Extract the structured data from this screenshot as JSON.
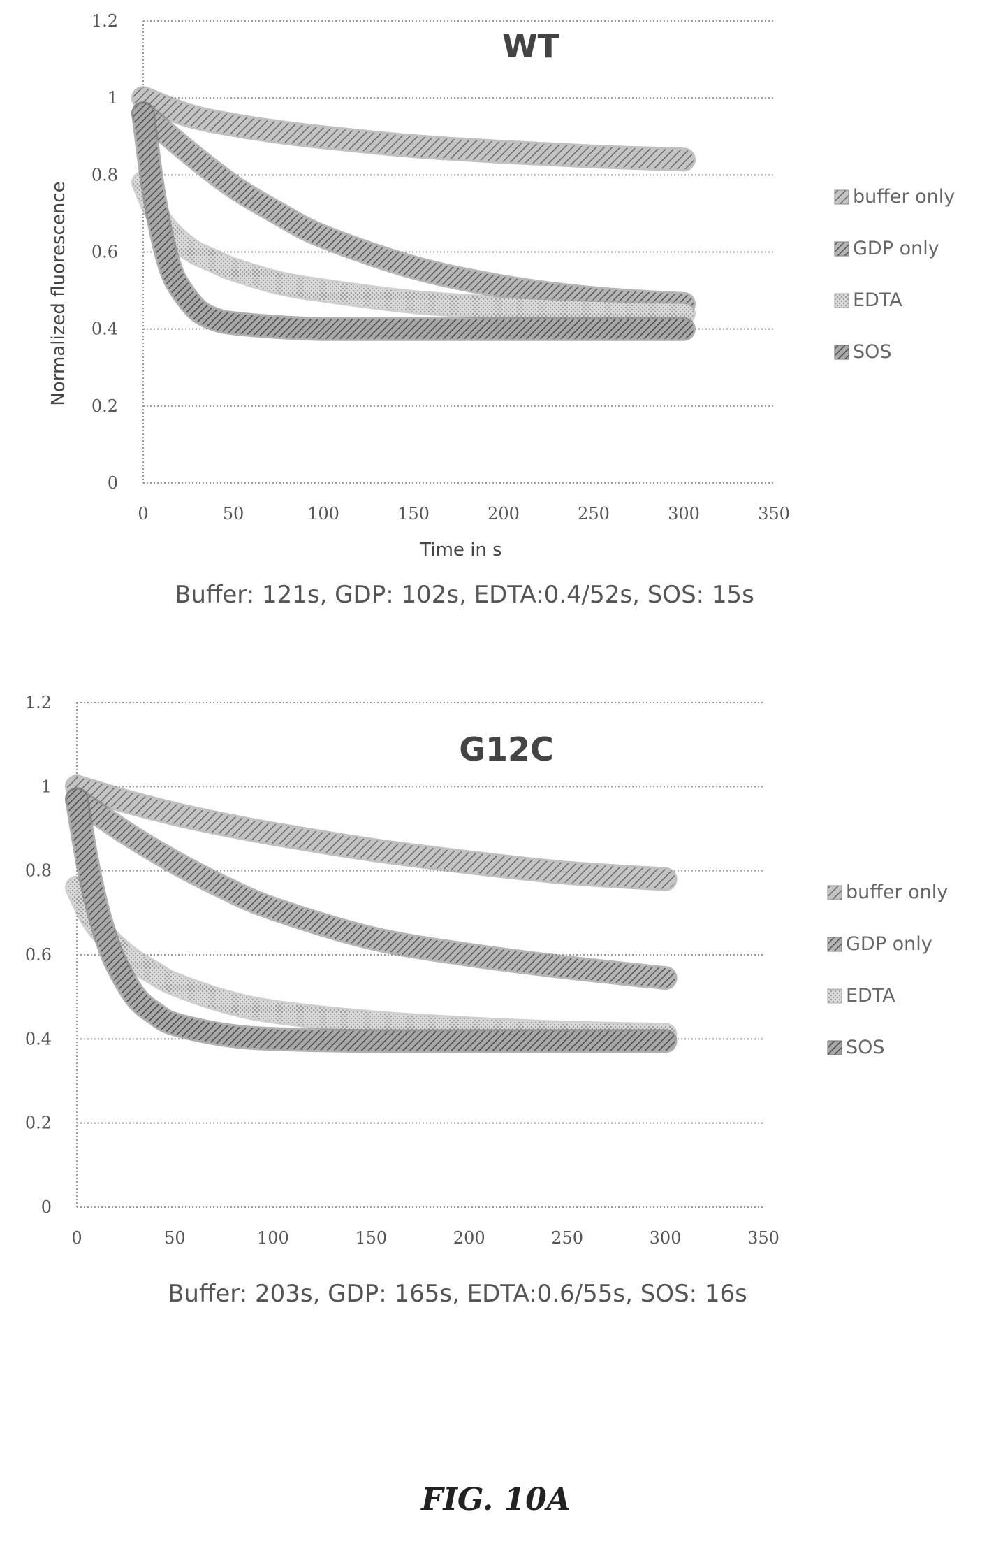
{
  "chart_data": [
    {
      "type": "line",
      "title": "WT",
      "xlabel": "Time in s",
      "ylabel": "Normalized fluorescence",
      "xlim": [
        0,
        350
      ],
      "ylim": [
        0,
        1.2
      ],
      "xticks": [
        "0",
        "50",
        "100",
        "150",
        "200",
        "250",
        "300",
        "350"
      ],
      "yticks": [
        "0",
        "0.2",
        "0.4",
        "0.6",
        "0.8",
        "1",
        "1.2"
      ],
      "grid": true,
      "legend_position": "right",
      "series": [
        {
          "name": "buffer only",
          "color": "#8c8c8c",
          "x": [
            0,
            25,
            50,
            75,
            100,
            150,
            200,
            250,
            300
          ],
          "y": [
            1.0,
            0.955,
            0.93,
            0.912,
            0.898,
            0.875,
            0.86,
            0.848,
            0.84
          ]
        },
        {
          "name": "GDP only",
          "color": "#7a7a7a",
          "x": [
            0,
            25,
            50,
            75,
            100,
            150,
            200,
            250,
            300
          ],
          "y": [
            0.96,
            0.86,
            0.77,
            0.7,
            0.64,
            0.56,
            0.51,
            0.48,
            0.465
          ]
        },
        {
          "name": "EDTA",
          "color": "#a8a8a8",
          "x": [
            0,
            10,
            25,
            40,
            50,
            75,
            100,
            150,
            200,
            250,
            300
          ],
          "y": [
            0.78,
            0.68,
            0.61,
            0.575,
            0.555,
            0.52,
            0.5,
            0.47,
            0.455,
            0.445,
            0.44
          ]
        },
        {
          "name": "SOS",
          "color": "#6e6e6e",
          "x": [
            0,
            5,
            10,
            15,
            20,
            30,
            40,
            50,
            75,
            100,
            150,
            200,
            300
          ],
          "y": [
            0.96,
            0.78,
            0.65,
            0.56,
            0.51,
            0.45,
            0.425,
            0.415,
            0.405,
            0.4,
            0.4,
            0.4,
            0.4
          ]
        }
      ],
      "caption": "Buffer: 121s, GDP: 102s, EDTA:0.4/52s, SOS: 15s"
    },
    {
      "type": "line",
      "title": "G12C",
      "xlabel": "",
      "ylabel": "",
      "xlim": [
        0,
        350
      ],
      "ylim": [
        0,
        1.2
      ],
      "xticks": [
        "0",
        "50",
        "100",
        "150",
        "200",
        "250",
        "300",
        "350"
      ],
      "yticks": [
        "0",
        "0.2",
        "0.4",
        "0.6",
        "0.8",
        "1",
        "1.2"
      ],
      "grid": true,
      "legend_position": "right",
      "series": [
        {
          "name": "buffer only",
          "color": "#8c8c8c",
          "x": [
            0,
            25,
            50,
            75,
            100,
            150,
            200,
            250,
            300
          ],
          "y": [
            1.0,
            0.965,
            0.935,
            0.91,
            0.888,
            0.85,
            0.82,
            0.795,
            0.78
          ]
        },
        {
          "name": "GDP only",
          "color": "#7a7a7a",
          "x": [
            0,
            25,
            50,
            75,
            100,
            150,
            200,
            250,
            300
          ],
          "y": [
            0.97,
            0.89,
            0.82,
            0.76,
            0.71,
            0.64,
            0.6,
            0.57,
            0.545
          ]
        },
        {
          "name": "EDTA",
          "color": "#a8a8a8",
          "x": [
            0,
            10,
            25,
            40,
            50,
            75,
            100,
            150,
            200,
            250,
            300
          ],
          "y": [
            0.76,
            0.67,
            0.6,
            0.555,
            0.53,
            0.49,
            0.465,
            0.44,
            0.425,
            0.415,
            0.41
          ]
        },
        {
          "name": "SOS",
          "color": "#6e6e6e",
          "x": [
            0,
            5,
            10,
            15,
            20,
            30,
            40,
            50,
            75,
            100,
            150,
            200,
            300
          ],
          "y": [
            0.97,
            0.83,
            0.72,
            0.64,
            0.58,
            0.5,
            0.46,
            0.435,
            0.41,
            0.4,
            0.395,
            0.395,
            0.395
          ]
        }
      ],
      "caption": "Buffer: 203s, GDP: 165s, EDTA:0.6/55s, SOS: 16s"
    }
  ],
  "figure_label": "FIG. 10A"
}
